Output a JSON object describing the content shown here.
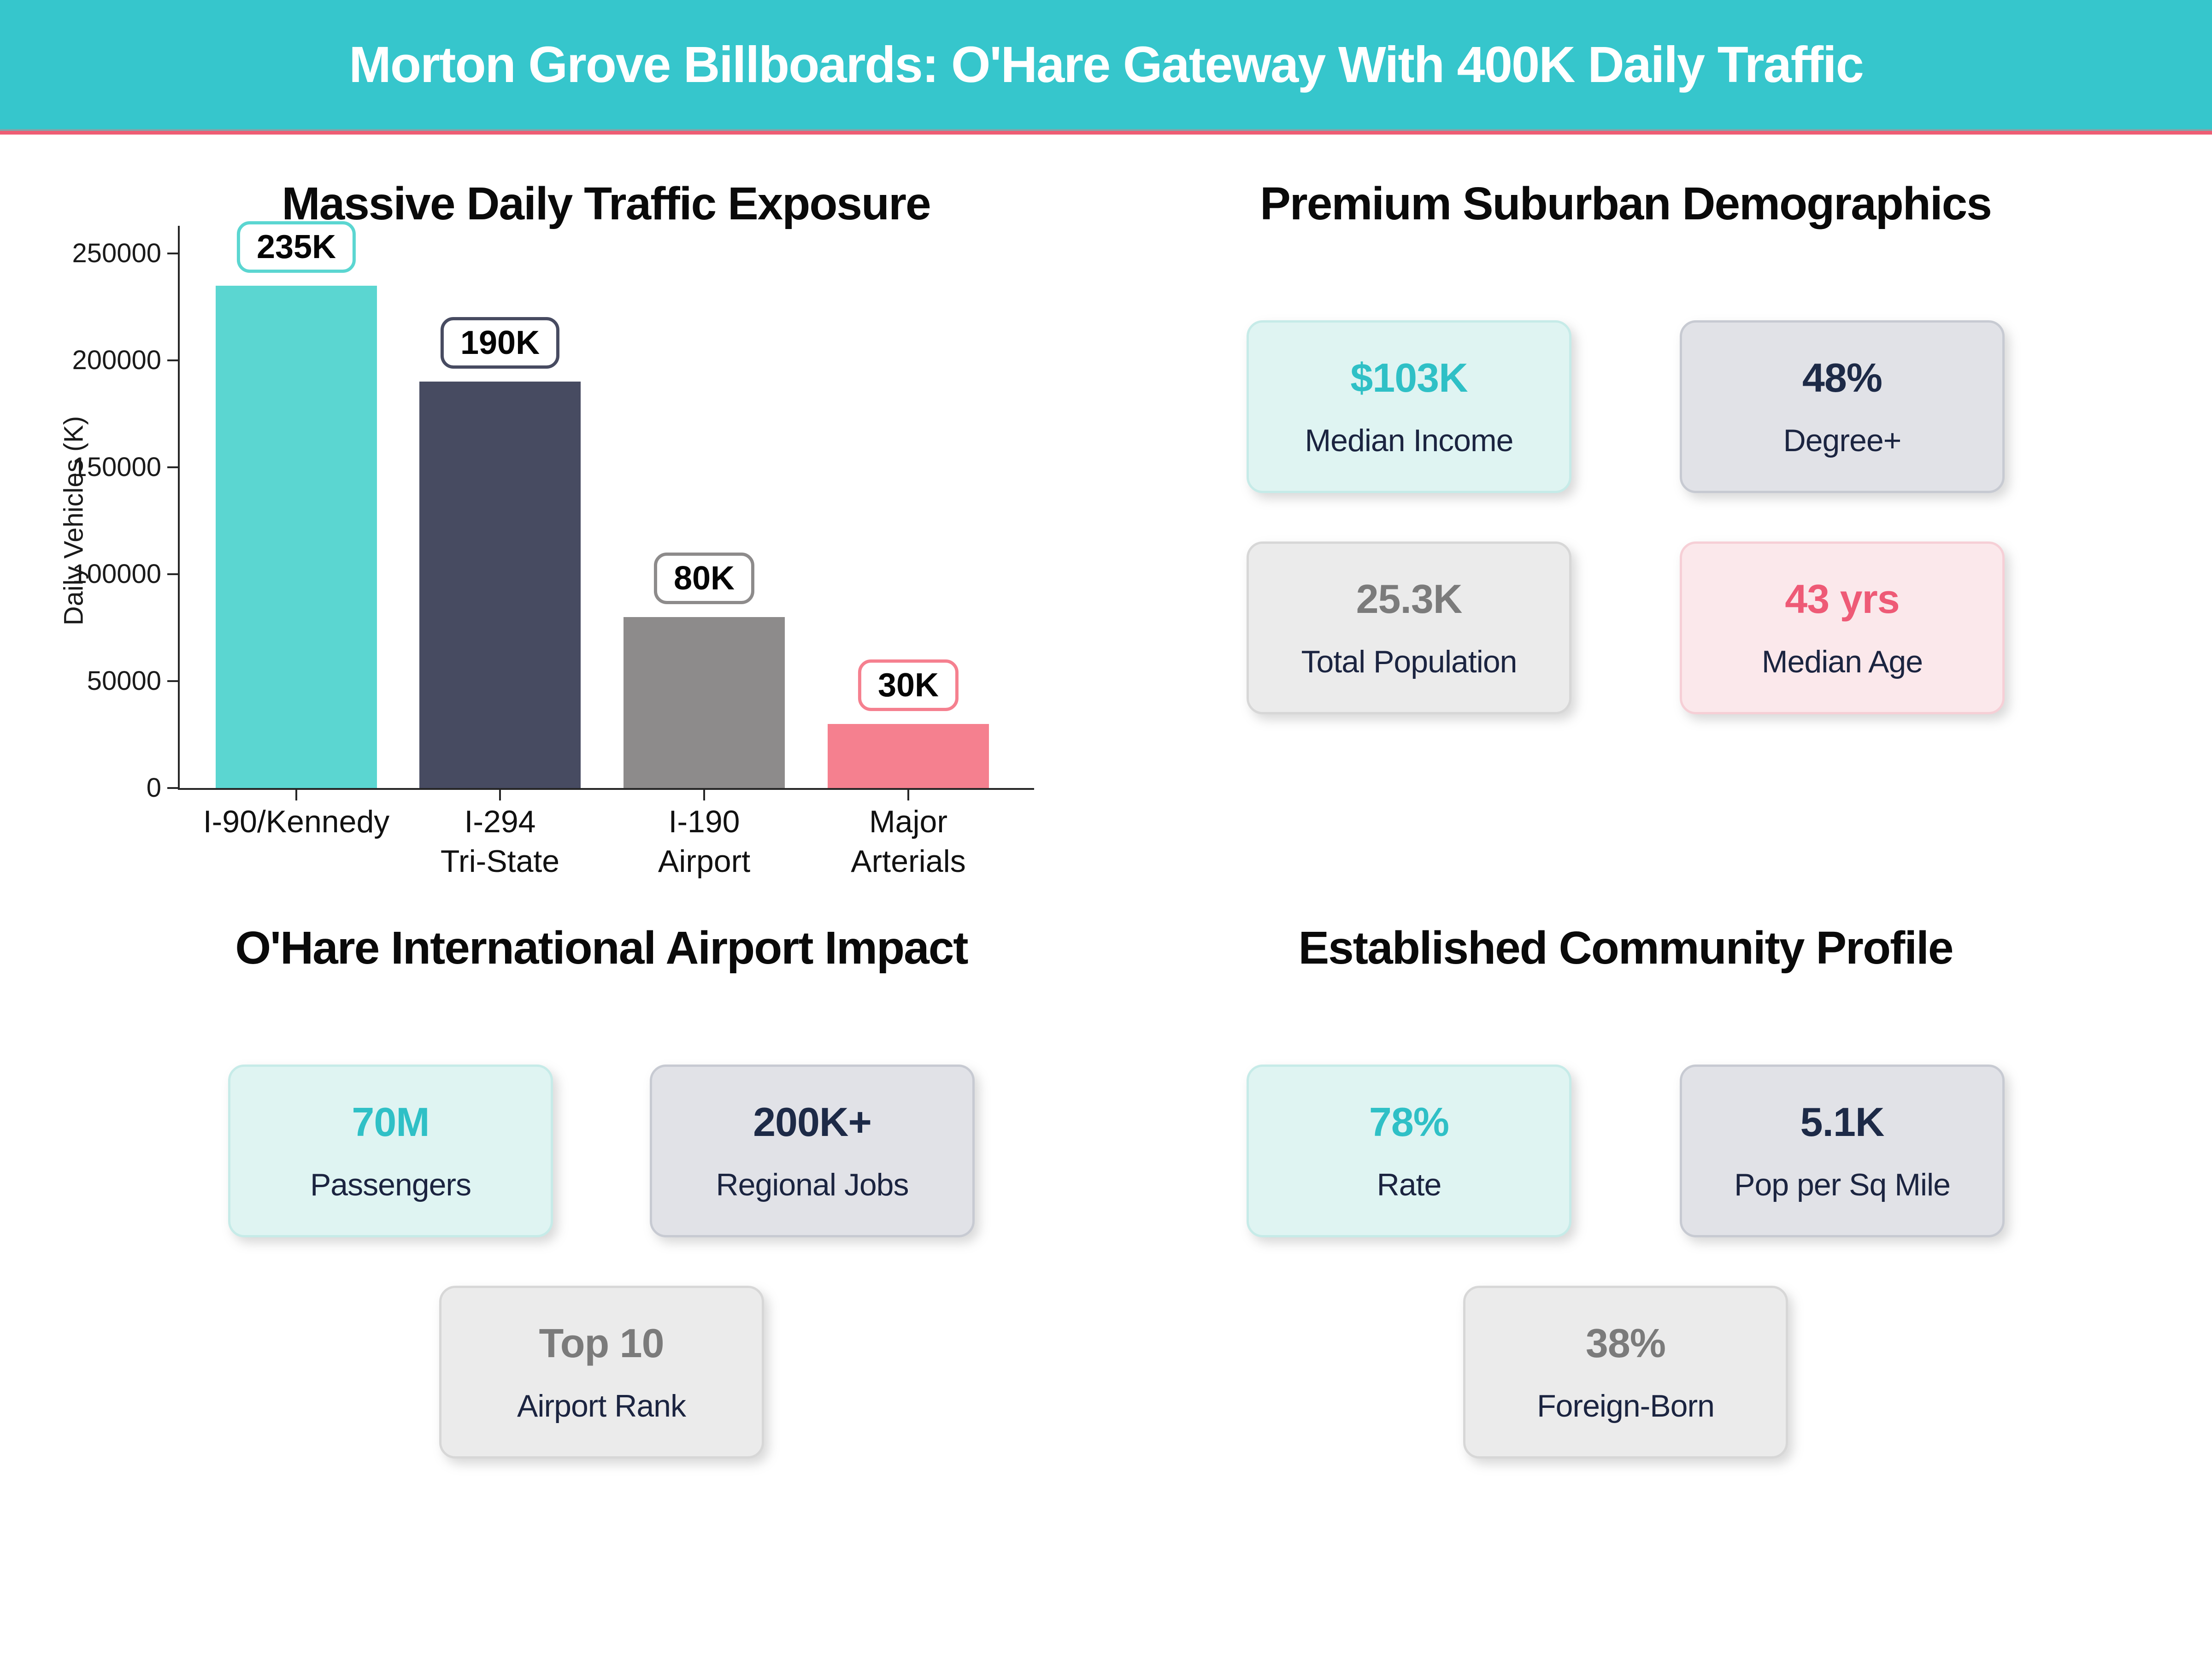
{
  "header": {
    "title": "Morton Grove Billboards: O'Hare Gateway With 400K Daily Traffic",
    "bg_color": "#36c6cc",
    "accent_color": "#ee5d74",
    "text_color": "#ffffff"
  },
  "chart_data": {
    "type": "bar",
    "title": "Massive Daily Traffic Exposure",
    "xlabel": "",
    "ylabel": "Daily Vehicles (K)",
    "categories": [
      "I-90/Kennedy",
      "I-294 Tri-State",
      "I-190 Airport",
      "Major Arterials"
    ],
    "category_lines": [
      [
        "I-90/Kennedy"
      ],
      [
        "I-294",
        "Tri-State"
      ],
      [
        "I-190",
        "Airport"
      ],
      [
        "Major",
        "Arterials"
      ]
    ],
    "values": [
      235000,
      190000,
      80000,
      30000
    ],
    "data_labels": [
      "235K",
      "190K",
      "80K",
      "30K"
    ],
    "bar_colors": [
      "#5bd6d1",
      "#474b61",
      "#8d8b8b",
      "#f5808f"
    ],
    "ylim": [
      0,
      250000
    ],
    "yticks": [
      0,
      50000,
      100000,
      150000,
      200000,
      250000
    ],
    "grid": false,
    "legend": false
  },
  "sections": {
    "demographics": {
      "title": "Premium Suburban Demographics",
      "cards": [
        {
          "value": "$103K",
          "label": "Median Income",
          "theme": "mint"
        },
        {
          "value": "48%",
          "label": "Degree+",
          "theme": "slate"
        },
        {
          "value": "25.3K",
          "label": "Total Population",
          "theme": "gray"
        },
        {
          "value": "43 yrs",
          "label": "Median Age",
          "theme": "pink"
        }
      ]
    },
    "airport": {
      "title": "O'Hare International Airport Impact",
      "cards": [
        {
          "value": "70M",
          "label": "Passengers",
          "theme": "mint"
        },
        {
          "value": "200K+",
          "label": "Regional Jobs",
          "theme": "slate"
        },
        {
          "value": "Top 10",
          "label": "Airport Rank",
          "theme": "gray"
        }
      ]
    },
    "community": {
      "title": "Established Community Profile",
      "cards": [
        {
          "value": "78%",
          "label": "Rate",
          "theme": "mint"
        },
        {
          "value": "5.1K",
          "label": "Pop per Sq Mile",
          "theme": "slate"
        },
        {
          "value": "38%",
          "label": "Foreign-Born",
          "theme": "gray"
        }
      ]
    }
  },
  "theme_colors": {
    "mint": {
      "bg": "#dff4f2",
      "border": "#c6ebe8",
      "value": "#2fc0c6"
    },
    "slate": {
      "bg": "#e1e2e7",
      "border": "#c7cad2",
      "value": "#1d2a47"
    },
    "gray": {
      "bg": "#ebebeb",
      "border": "#d7d7d7",
      "value": "#7b7b7b"
    },
    "pink": {
      "bg": "#fbe8eb",
      "border": "#f6cfd6",
      "value": "#ee5a76"
    },
    "label_color": "#1b2440"
  }
}
